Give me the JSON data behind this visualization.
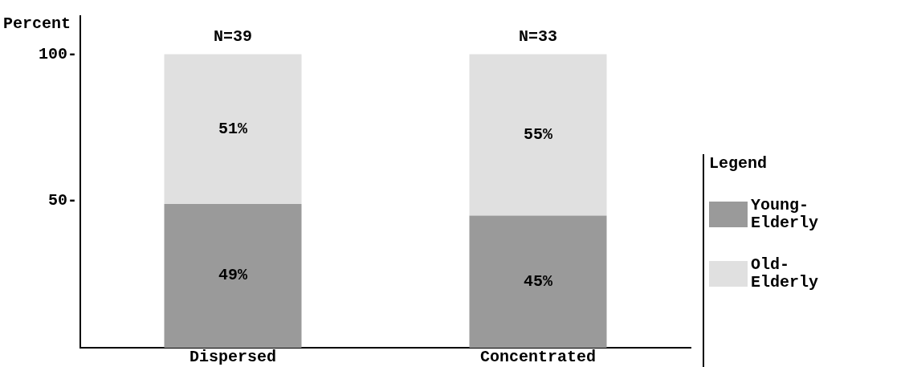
{
  "chart_data": {
    "type": "bar",
    "stacked": true,
    "ylabel": "Percent",
    "legend_title": "Legend",
    "legend": "right",
    "categories": [
      "Dispersed",
      "Concentrated"
    ],
    "ylim": [
      0,
      113
    ],
    "yticks": [
      {
        "value": 50,
        "label": "50-"
      },
      {
        "value": 100,
        "label": "100-"
      }
    ],
    "grid": false,
    "series": [
      {
        "name": "Young-Elderly",
        "color": "#9a9a9a",
        "values": [
          49,
          45
        ],
        "value_labels": [
          "49%",
          "45%"
        ]
      },
      {
        "name": "Old-Elderly",
        "color": "#e0e0e0",
        "values": [
          51,
          55
        ],
        "value_labels": [
          "51%",
          "55%"
        ]
      }
    ],
    "annotations": [
      {
        "text": "N=39",
        "x": "Dispersed",
        "y": 100
      },
      {
        "text": "N=33",
        "x": "Concentrated",
        "y": 100
      }
    ]
  }
}
